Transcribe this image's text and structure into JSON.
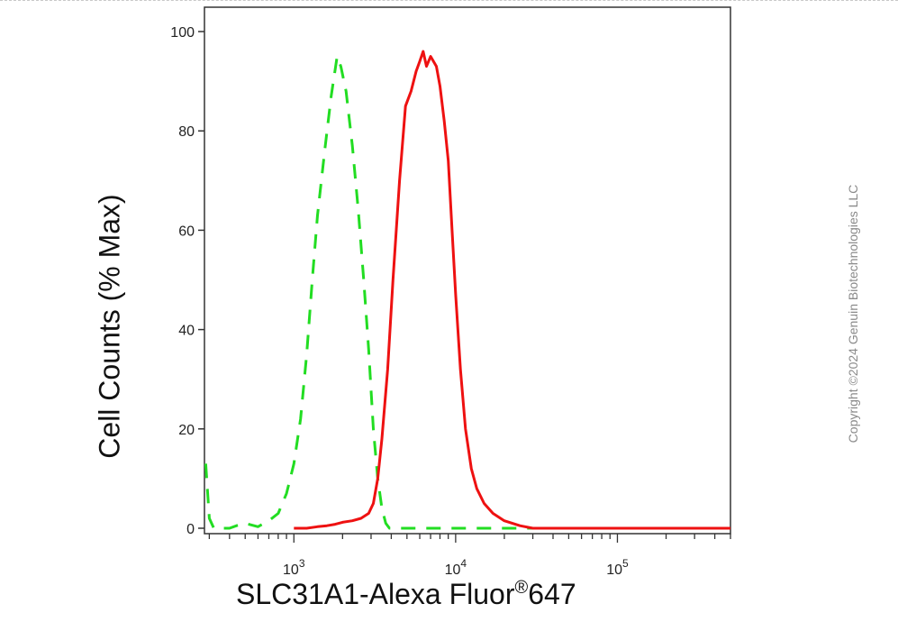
{
  "chart_data": {
    "type": "line",
    "xlabel": "SLC31A1-Alexa Fluor",
    "xlabel_sup": "®",
    "xlabel_suffix": "647",
    "ylabel": "Cell Counts (% Max)",
    "x_scale": "log",
    "xlim": [
      280,
      500000
    ],
    "ylim": [
      0,
      103
    ],
    "y_ticks": [
      0,
      20,
      40,
      60,
      80,
      100
    ],
    "x_tick_labels": [
      {
        "base": "10",
        "exp": "3",
        "value": 1000
      },
      {
        "base": "10",
        "exp": "4",
        "value": 10000
      },
      {
        "base": "10",
        "exp": "5",
        "value": 100000
      }
    ],
    "grid": false,
    "series": [
      {
        "color": "#22dd22",
        "style": "dashed",
        "points": [
          [
            285,
            13
          ],
          [
            300,
            2
          ],
          [
            320,
            0
          ],
          [
            400,
            0
          ],
          [
            450,
            0.6
          ],
          [
            500,
            1
          ],
          [
            600,
            0.3
          ],
          [
            700,
            1.5
          ],
          [
            800,
            3
          ],
          [
            900,
            7
          ],
          [
            1000,
            13
          ],
          [
            1100,
            22
          ],
          [
            1200,
            35
          ],
          [
            1300,
            50
          ],
          [
            1400,
            63
          ],
          [
            1550,
            76
          ],
          [
            1700,
            87
          ],
          [
            1850,
            95
          ],
          [
            1950,
            93
          ],
          [
            2100,
            88
          ],
          [
            2300,
            77
          ],
          [
            2500,
            64
          ],
          [
            2700,
            50
          ],
          [
            2900,
            36
          ],
          [
            3100,
            20
          ],
          [
            3300,
            10
          ],
          [
            3500,
            4
          ],
          [
            3700,
            1
          ],
          [
            3900,
            0
          ],
          [
            5000,
            0
          ],
          [
            10000,
            0
          ],
          [
            100000,
            0
          ],
          [
            500000,
            0
          ]
        ]
      },
      {
        "color": "#ee1111",
        "style": "solid",
        "points": [
          [
            1000,
            0
          ],
          [
            1200,
            0
          ],
          [
            1400,
            0.3
          ],
          [
            1600,
            0.5
          ],
          [
            1800,
            0.8
          ],
          [
            2000,
            1.2
          ],
          [
            2300,
            1.5
          ],
          [
            2600,
            2
          ],
          [
            2900,
            3
          ],
          [
            3100,
            5
          ],
          [
            3300,
            10
          ],
          [
            3500,
            18
          ],
          [
            3800,
            32
          ],
          [
            4100,
            50
          ],
          [
            4500,
            70
          ],
          [
            4900,
            85
          ],
          [
            5300,
            88
          ],
          [
            5700,
            92
          ],
          [
            6000,
            94
          ],
          [
            6300,
            96
          ],
          [
            6600,
            93
          ],
          [
            7000,
            95
          ],
          [
            7300,
            94
          ],
          [
            7600,
            93
          ],
          [
            8000,
            89
          ],
          [
            8500,
            82
          ],
          [
            9000,
            74
          ],
          [
            9500,
            60
          ],
          [
            10000,
            47
          ],
          [
            10700,
            32
          ],
          [
            11500,
            20
          ],
          [
            12500,
            12
          ],
          [
            13500,
            8
          ],
          [
            15000,
            5
          ],
          [
            17000,
            3
          ],
          [
            20000,
            1.5
          ],
          [
            25000,
            0.5
          ],
          [
            30000,
            0
          ],
          [
            100000,
            0
          ],
          [
            500000,
            0
          ]
        ]
      }
    ]
  },
  "copyright": "Copyright ©2024 Genuin Biotechnologies LLC"
}
